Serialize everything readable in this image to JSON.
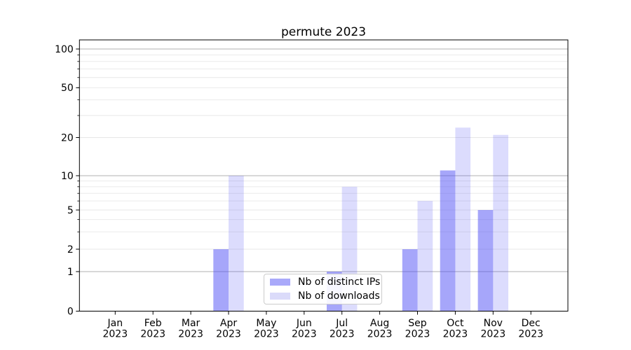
{
  "figure": {
    "background": "#ffffff",
    "spine_color": "#000000"
  },
  "chart_data": {
    "type": "bar",
    "title": "permute 2023",
    "xlabel": "",
    "ylabel": "",
    "categories": [
      "Jan",
      "Feb",
      "Mar",
      "Apr",
      "May",
      "Jun",
      "Jul",
      "Aug",
      "Sep",
      "Oct",
      "Nov",
      "Dec"
    ],
    "x_year_suffix": "2023",
    "series": [
      {
        "name": "Nb of distinct IPs",
        "values": [
          0,
          0,
          0,
          2,
          0,
          0,
          1,
          0,
          2,
          11,
          5,
          0
        ],
        "color": "rgba(70,70,245,0.48)",
        "color_over_white": "#a9a9fa"
      },
      {
        "name": "Nb of downloads",
        "values": [
          0,
          0,
          0,
          10,
          0,
          0,
          8,
          0,
          6,
          24,
          21,
          0
        ],
        "color": "rgba(70,70,245,0.19)",
        "color_over_white": "#dbdbfa"
      }
    ],
    "y_axis": {
      "scale": "symlog",
      "tick_values": [
        0,
        1,
        2,
        5,
        10,
        20,
        50,
        100
      ],
      "tick_labels": [
        "0",
        "1",
        "2",
        "5",
        "10",
        "20",
        "50",
        "100"
      ],
      "major_grid_values": [
        1,
        10,
        100
      ],
      "minor_grid_values": [
        2,
        3,
        4,
        5,
        6,
        7,
        8,
        9,
        20,
        30,
        40,
        50,
        60,
        70,
        80,
        90
      ],
      "ylim": [
        0,
        113
      ]
    },
    "grid": {
      "on": true,
      "major_color": "#b2b2b2",
      "minor_color": "#e7e7e7"
    },
    "legend": {
      "position": "lower center",
      "entries": [
        "Nb of distinct IPs",
        "Nb of downloads"
      ]
    }
  }
}
